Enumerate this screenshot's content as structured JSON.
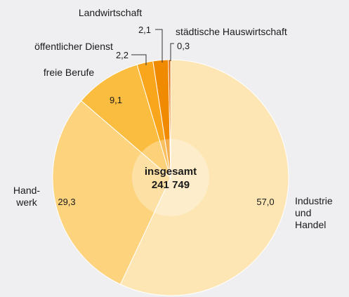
{
  "chart_data": {
    "type": "pie",
    "categories": [
      "Industrie\nund\nHandel",
      "Hand-\nwerk",
      "freie Berufe",
      "öffentlicher Dienst",
      "Landwirtschaft",
      "städtische Hauswirtschaft"
    ],
    "values": [
      57.0,
      29.3,
      9.1,
      2.2,
      2.1,
      0.3
    ],
    "value_labels": [
      "57,0",
      "29,3",
      "9,1",
      "2,2",
      "2,1",
      "0,3"
    ],
    "colors": [
      "#fde6b3",
      "#fdd37d",
      "#fbbd3f",
      "#f9a61c",
      "#f08a00",
      "#dd6400"
    ],
    "center_label": [
      "insgesamt",
      "241 749"
    ]
  }
}
